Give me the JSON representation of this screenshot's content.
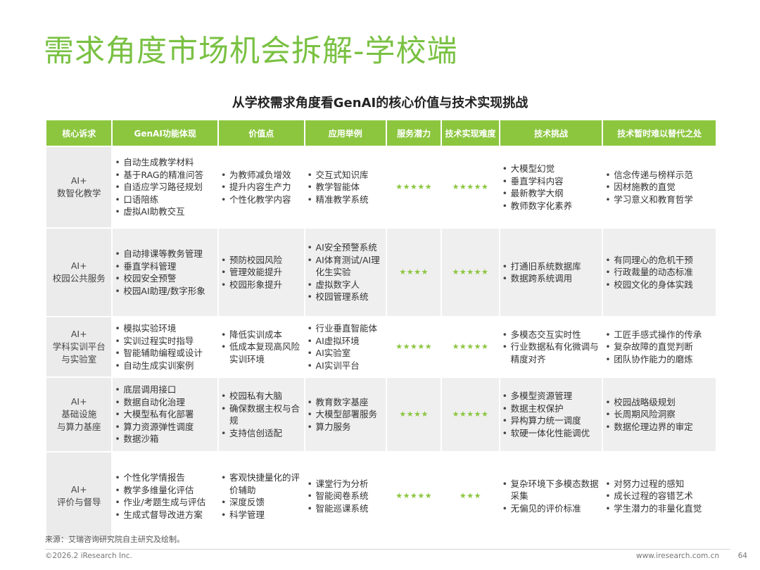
{
  "page_title": "需求角度市场机会拆解-学校端",
  "table_title": "从学校需求角度看GenAI的核心价值与技术实现挑战",
  "columns": [
    "核心诉求",
    "GenAI功能体现",
    "价值点",
    "应用举例",
    "服务潜力",
    "技术实现难度",
    "技术挑战",
    "技术暂时难以替代之处"
  ],
  "rows": [
    {
      "demand": [
        "AI+",
        "数智化教学"
      ],
      "features": [
        "自动生成教学材料",
        "基于RAG的精准问答",
        "自适应学习路径规划",
        "口语陪练",
        "虚拟AI助教交互"
      ],
      "values": [
        "为教师减负增效",
        "提升内容生产力",
        "个性化教学内容"
      ],
      "examples": [
        "交互式知识库",
        "教学智能体",
        "精准教学系统"
      ],
      "potential": "★★★★★",
      "difficulty": "★★★★★",
      "challenges": [
        "大模型幻觉",
        "垂直学科内容",
        "最新教学大纲",
        "教师数字化素养"
      ],
      "irreplaceable": [
        "信念传递与榜样示范",
        "因材施教的直觉",
        "学习意义和教育哲学"
      ]
    },
    {
      "demand": [
        "AI+",
        "校园公共服务"
      ],
      "features": [
        "自动排课等教务管理",
        "垂直学科管理",
        "校园安全预警",
        "校园AI助理/数字形象"
      ],
      "values": [
        "预防校园风险",
        "管理效能提升",
        "校园形象提升"
      ],
      "examples": [
        "AI安全预警系统",
        "AI体育测试/AI理化生实验",
        "虚拟数字人",
        "校园管理系统"
      ],
      "potential": "★★★★",
      "difficulty": "★★★★★",
      "challenges": [
        "打通旧系统数据库",
        "数据跨系统调用"
      ],
      "irreplaceable": [
        "有同理心的危机干预",
        "行政裁量的动态标准",
        "校园文化的身体实践"
      ]
    },
    {
      "demand": [
        "AI+",
        "学科实训平台",
        "与实验室"
      ],
      "features": [
        "模拟实验环境",
        "实训过程实时指导",
        "智能辅助编程或设计",
        "自动生成实训案例"
      ],
      "values": [
        "降低实训成本",
        "低成本复现高风险实训环境"
      ],
      "examples": [
        "行业垂直智能体",
        "AI虚拟环境",
        "AI实验室",
        "AI实训平台"
      ],
      "potential": "★★★★★",
      "difficulty": "★★★★★",
      "challenges": [
        "多模态交互实时性",
        "行业数据私有化微调与精度对齐"
      ],
      "irreplaceable": [
        "工匠手感式操作的传承",
        "复杂故障的直觉判断",
        "团队协作能力的磨炼"
      ]
    },
    {
      "demand": [
        "AI+",
        "基础设施",
        "与算力基座"
      ],
      "features": [
        "底层调用接口",
        "数据自动化治理",
        "大模型私有化部署",
        "算力资源弹性调度",
        "数据沙箱"
      ],
      "values": [
        "校园私有大脑",
        "确保数据主权与合规",
        "支持信创适配"
      ],
      "examples": [
        "教育数字基座",
        "大模型部署服务",
        "算力服务"
      ],
      "potential": "★★★★",
      "difficulty": "★★★★★",
      "challenges": [
        "多模型资源管理",
        "数据主权保护",
        "异构算力统一调度",
        "软硬一体化性能调优"
      ],
      "irreplaceable": [
        "校园战略级规划",
        "长周期风险洞察",
        "数据伦理边界的审定"
      ]
    },
    {
      "demand": [
        "AI+",
        "评价与督导"
      ],
      "features": [
        "个性化学情报告",
        "教学多维量化评估",
        "作业/考题生成与评估",
        "生成式督导改进方案"
      ],
      "values": [
        "客观快捷量化的评价辅助",
        "深度反馈",
        "科学管理"
      ],
      "examples": [
        "课堂行为分析",
        "智能阅卷系统",
        "智能巡课系统"
      ],
      "potential": "★★★★★",
      "difficulty": "★★★",
      "challenges": [
        "复杂环境下多模态数据采集",
        "无偏见的评价标准"
      ],
      "irreplaceable": [
        "对努力过程的感知",
        "成长过程的容错艺术",
        "学生潜力的非量化直觉"
      ]
    }
  ],
  "source": "来源：艾瑞咨询研究院自主研究及绘制。",
  "footer": {
    "copyright": "©2026.2 iResearch Inc.",
    "website": "www.iresearch.com.cn",
    "page_number": "64"
  },
  "colors": {
    "accent": "#7ac143",
    "header_bg": "#8cc63f",
    "row_alt_bg": "#efefef"
  }
}
